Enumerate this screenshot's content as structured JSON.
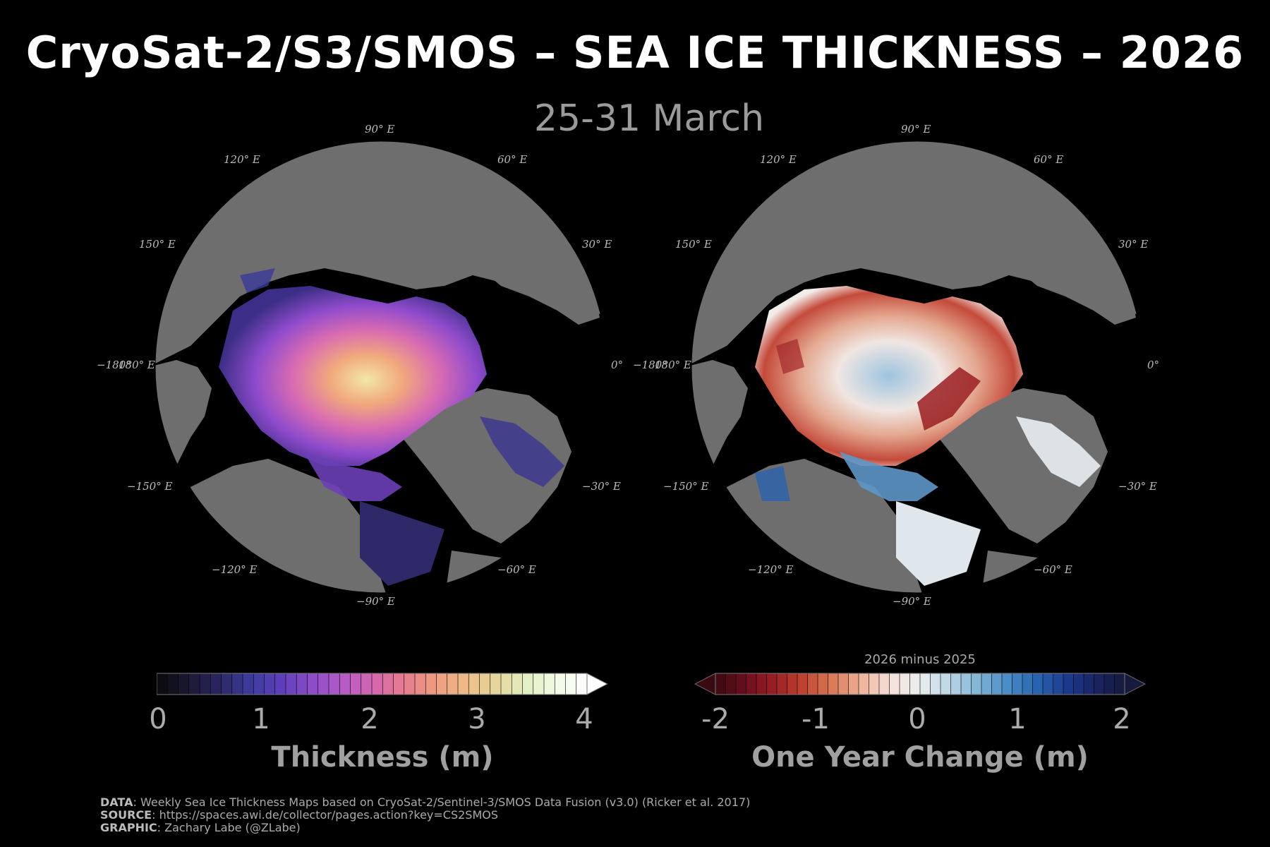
{
  "title": "CryoSat-2/S3/SMOS – SEA ICE THICKNESS – 2026",
  "subtitle": "25-31 March",
  "left_map": {
    "lon_labels": {
      "n90": "90° E",
      "n120": "120° E",
      "n60": "60° E",
      "n150": "150° E",
      "n30": "30° E",
      "w180": "−180°",
      "w180b": "180° E",
      "e0": "0°",
      "s150": "−150° E",
      "s30": "−30° E",
      "s120": "−120° E",
      "s60": "−60° E",
      "s90": "−90° E"
    }
  },
  "right_map": {
    "lon_labels": {
      "n90": "90° E",
      "n120": "120° E",
      "n60": "60° E",
      "n150": "150° E",
      "n30": "30° E",
      "w180": "−180°",
      "w180b": "180° E",
      "e0": "0°",
      "s150": "−150° E",
      "s30": "−30° E",
      "s120": "−120° E",
      "s60": "−60° E",
      "s90": "−90° E"
    }
  },
  "colorbar_left": {
    "ticks": [
      "0",
      "1",
      "2",
      "3",
      "4"
    ],
    "title": "Thickness (m)",
    "colors": [
      "#0a0a0a",
      "#1a1830",
      "#2a2660",
      "#3b3a9a",
      "#5a3fb8",
      "#8a4cc8",
      "#b35ac8",
      "#d466b0",
      "#e77a90",
      "#ef9a80",
      "#eeba86",
      "#e5d69a",
      "#e2efc0",
      "#f2fbe6",
      "#ffffff"
    ]
  },
  "colorbar_right": {
    "subtitle": "2026 minus 2025",
    "ticks": [
      "-2",
      "-1",
      "0",
      "1",
      "2"
    ],
    "title": "One Year Change (m)",
    "colors": [
      "#3a0a12",
      "#6a0f1e",
      "#9a1e24",
      "#c0432e",
      "#db7a58",
      "#eeb39a",
      "#f6e2da",
      "#eaeef0",
      "#bcd6e4",
      "#80b4d6",
      "#4a8cc6",
      "#2864b0",
      "#1c3a8e",
      "#1a2462",
      "#161a3c"
    ]
  },
  "credits": {
    "data_label": "DATA",
    "data_text": ": Weekly Sea Ice Thickness Maps based on CryoSat-2/Sentinel-3/SMOS Data Fusion (v3.0) (Ricker et al. 2017)",
    "source_label": "SOURCE",
    "source_text": ": https://spaces.awi.de/collector/pages.action?key=CS2SMOS",
    "graphic_label": "GRAPHIC",
    "graphic_text": ": Zachary Labe (@ZLabe)"
  }
}
